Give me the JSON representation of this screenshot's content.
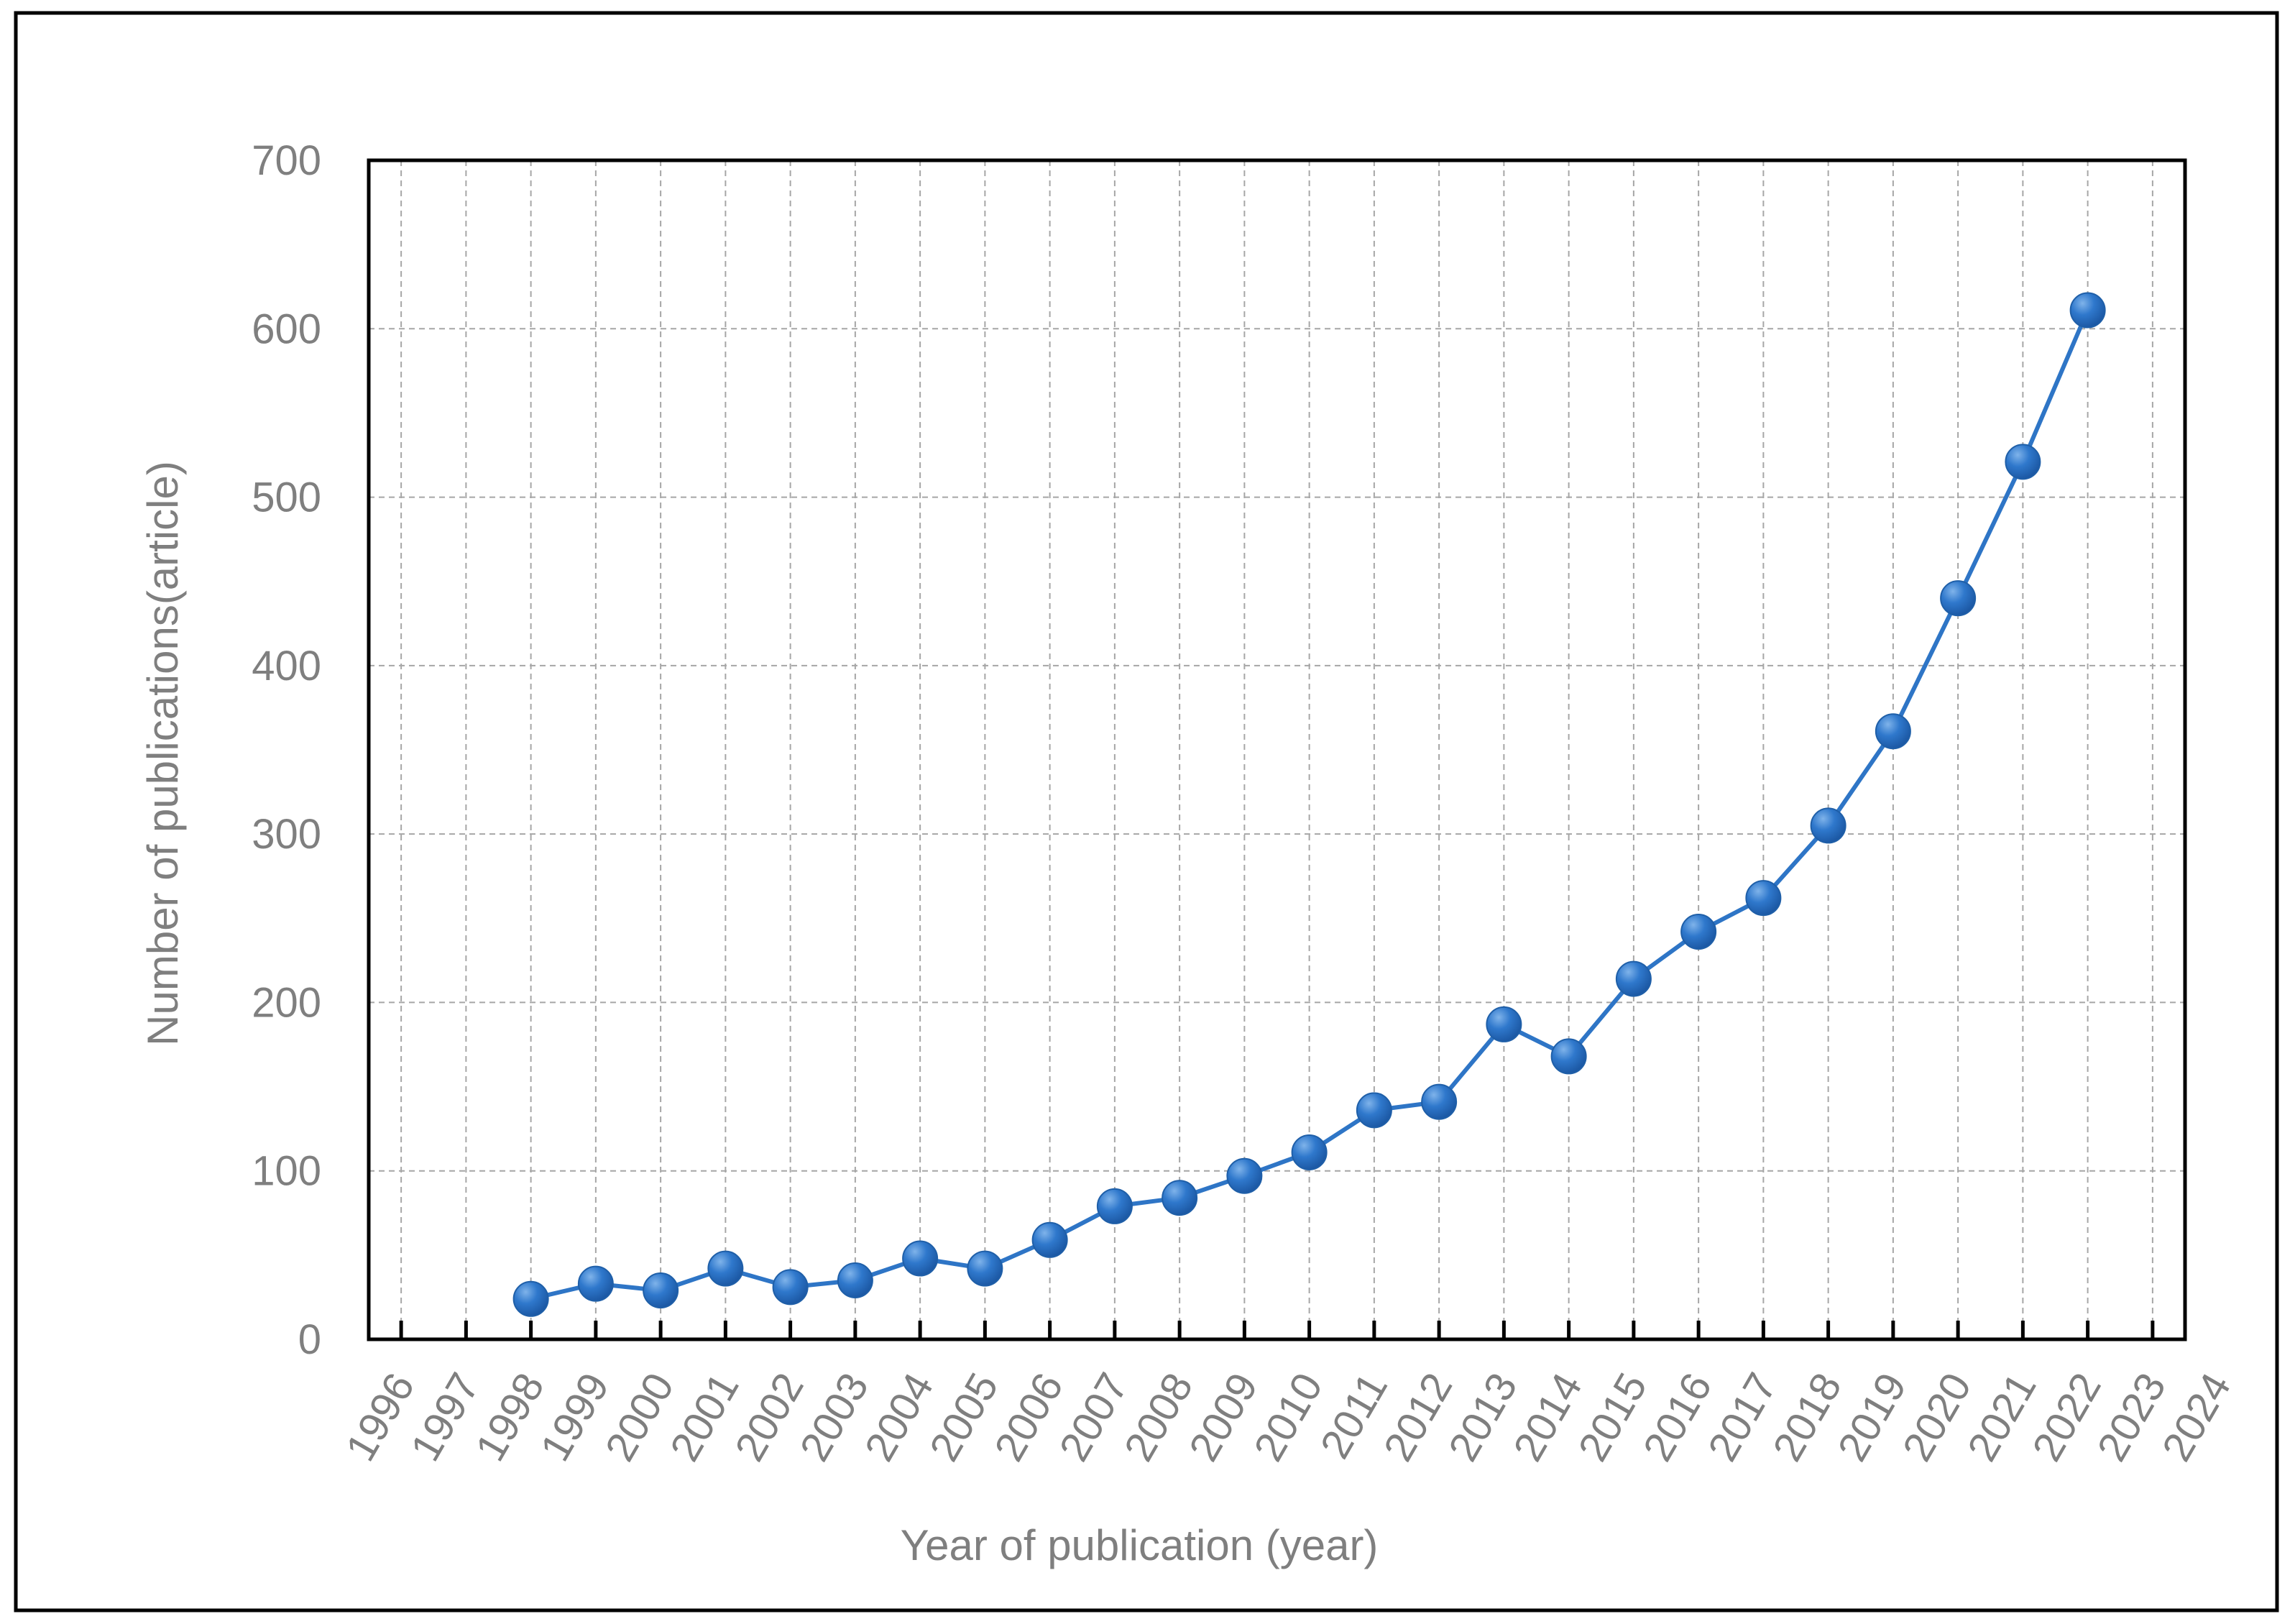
{
  "chart_data": {
    "type": "line",
    "title": "",
    "xlabel": "Year of publication (year)",
    "ylabel": "Number of publications(article)",
    "x_tick_labels": [
      "1996",
      "1997",
      "1998",
      "1999",
      "2000",
      "2001",
      "2002",
      "2003",
      "2004",
      "2005",
      "2006",
      "2007",
      "2008",
      "2009",
      "2010",
      "2011",
      "2012",
      "2013",
      "2014",
      "2015",
      "2016",
      "2017",
      "2018",
      "2019",
      "2020",
      "2021",
      "2022",
      "2023",
      "2024"
    ],
    "y_tick_labels": [
      "0",
      "100",
      "200",
      "300",
      "400",
      "500",
      "600",
      "700"
    ],
    "xlim": [
      1996,
      2024
    ],
    "ylim": [
      0,
      700
    ],
    "grid": true,
    "legend": "none",
    "series": [
      {
        "color": "#2e75c6",
        "x": [
          1998,
          1999,
          2000,
          2001,
          2002,
          2003,
          2004,
          2005,
          2006,
          2007,
          2008,
          2009,
          2010,
          2011,
          2012,
          2013,
          2014,
          2015,
          2016,
          2017,
          2018,
          2019,
          2020,
          2021,
          2022
        ],
        "y": [
          24,
          33,
          29,
          42,
          31,
          35,
          48,
          42,
          59,
          79,
          84,
          97,
          111,
          136,
          141,
          187,
          168,
          214,
          242,
          262,
          305,
          361,
          440,
          521,
          611
        ]
      }
    ]
  }
}
